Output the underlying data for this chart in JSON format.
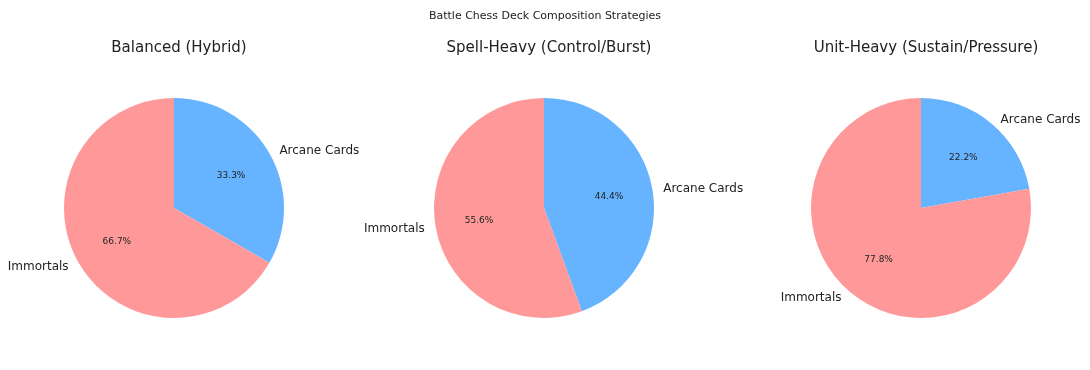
{
  "chart_data": [
    {
      "type": "pie",
      "title": "Balanced (Hybrid)",
      "annotations": [
        "Battle Chess Deck Composition Strategies"
      ],
      "categories": [
        "Arcane Cards",
        "Immortals"
      ],
      "values": [
        33.3,
        66.7
      ],
      "value_labels": [
        "33.3%",
        "66.7%"
      ],
      "colors": [
        "#66b3ff",
        "#ff9999"
      ],
      "legend": false
    },
    {
      "type": "pie",
      "title": "Spell-Heavy (Control/Burst)",
      "categories": [
        "Arcane Cards",
        "Immortals"
      ],
      "values": [
        44.4,
        55.6
      ],
      "value_labels": [
        "44.4%",
        "55.6%"
      ],
      "colors": [
        "#66b3ff",
        "#ff9999"
      ],
      "legend": false
    },
    {
      "type": "pie",
      "title": "Unit-Heavy (Sustain/Pressure)",
      "categories": [
        "Arcane Cards",
        "Immortals"
      ],
      "values": [
        22.2,
        77.8
      ],
      "value_labels": [
        "22.2%",
        "77.8%"
      ],
      "colors": [
        "#66b3ff",
        "#ff9999"
      ],
      "legend": false
    }
  ]
}
